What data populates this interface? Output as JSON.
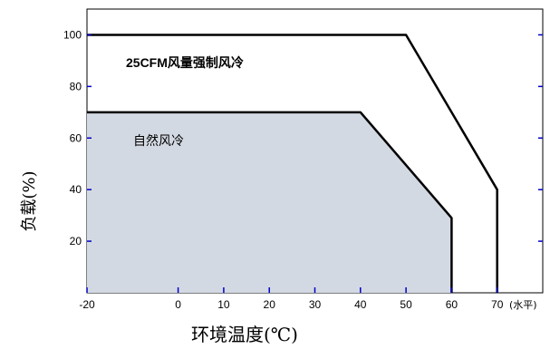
{
  "chart_data": {
    "type": "area",
    "xlabel": "环境温度(℃)",
    "ylabel": "负载(%)",
    "x_unit_note": "(水平)",
    "xlim": [
      -20,
      80
    ],
    "ylim": [
      0,
      110
    ],
    "x_ticks": [
      -20,
      0,
      10,
      20,
      30,
      40,
      50,
      60,
      70
    ],
    "y_ticks": [
      20,
      40,
      60,
      80,
      100
    ],
    "grid": false,
    "series": [
      {
        "name": "25CFM风量强制风冷",
        "x": [
          -20,
          50,
          70,
          70
        ],
        "y": [
          100,
          100,
          40,
          0
        ],
        "fill": "none",
        "color": "#000000"
      },
      {
        "name": "自然风冷",
        "x": [
          -20,
          40,
          60,
          60
        ],
        "y": [
          70,
          70,
          29,
          0
        ],
        "fill": "#d3d9e2",
        "color": "#000000"
      }
    ],
    "colors": {
      "axis": "#000000",
      "tick_marks": "#0000cc",
      "region_fill": "#d3d9e2"
    }
  }
}
